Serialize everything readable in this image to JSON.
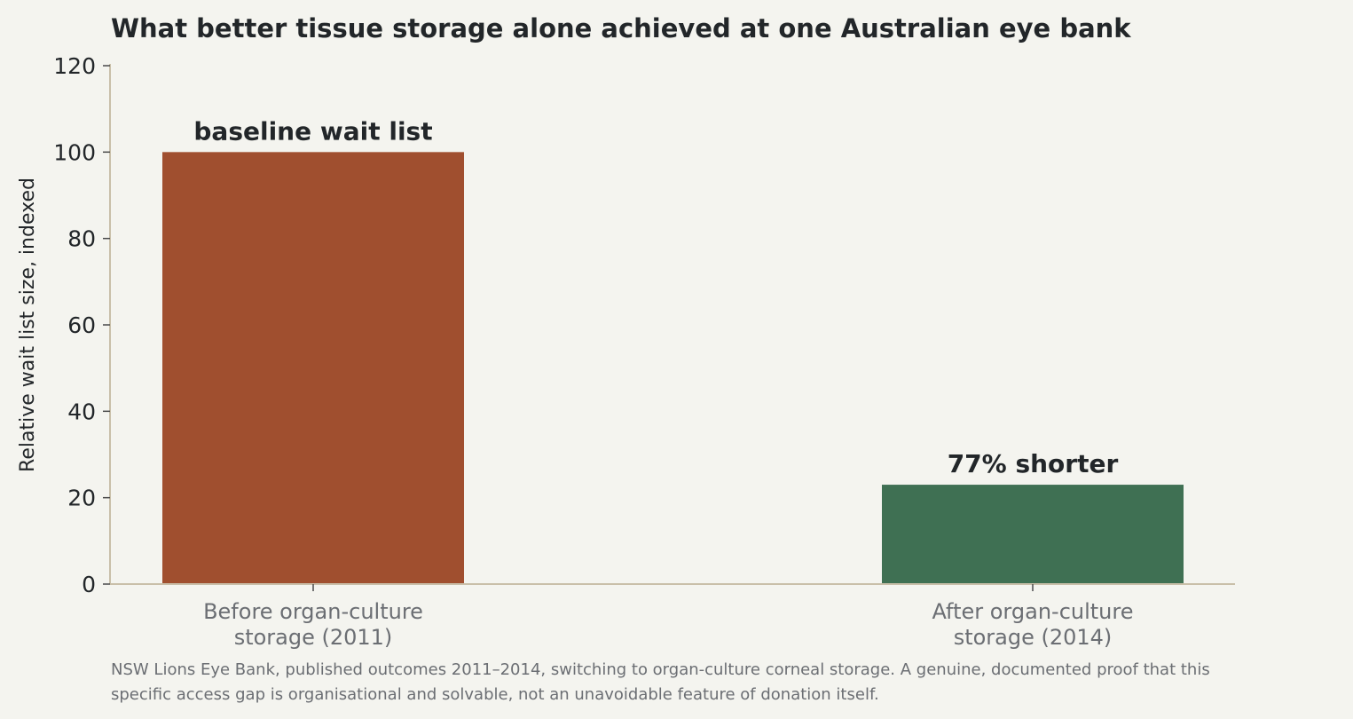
{
  "colors": {
    "background": "#f4f4ef",
    "axis": "#c9bfa9",
    "text": "#222629",
    "muted_text": "#6b6e73"
  },
  "chart_data": {
    "type": "bar",
    "title": "What better tissue storage alone achieved at one Australian eye bank",
    "ylabel": "Relative wait list size, indexed",
    "xlabel": "",
    "ylim": [
      0,
      120
    ],
    "yticks": [
      "0",
      "20",
      "40",
      "60",
      "80",
      "100",
      "120"
    ],
    "grid": false,
    "categories": [
      [
        "Before organ-culture",
        "storage (2011)"
      ],
      [
        "After organ-culture",
        "storage (2014)"
      ]
    ],
    "values": [
      100,
      23
    ],
    "bar_colors": [
      "#a04f2f",
      "#3f7053"
    ],
    "data_labels": [
      "baseline wait list",
      "77% shorter"
    ],
    "note": [
      "NSW Lions Eye Bank, published outcomes 2011–2014, switching to organ-culture corneal storage. A genuine, documented proof that this",
      "specific access gap is organisational and solvable, not an unavoidable feature of donation itself."
    ]
  }
}
